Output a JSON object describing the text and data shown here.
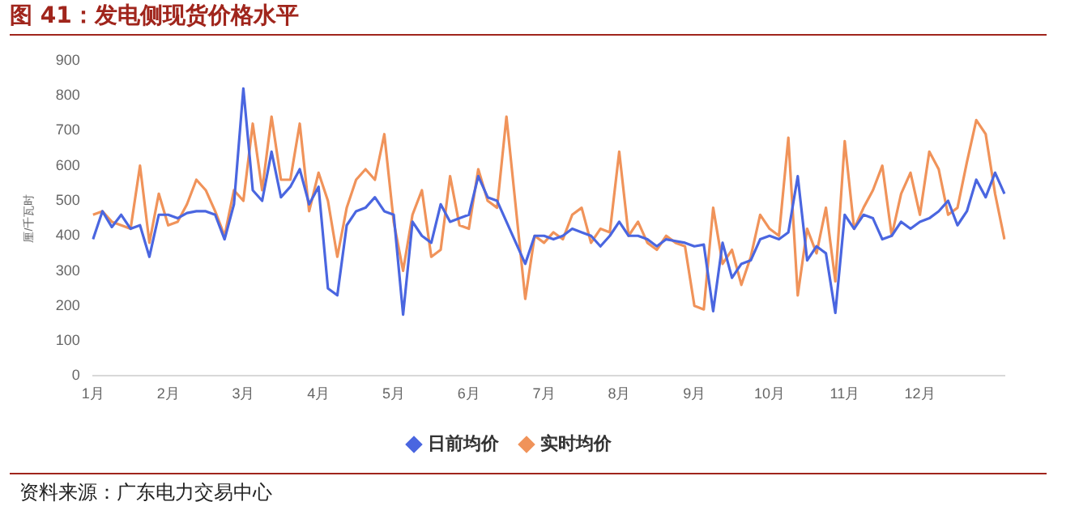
{
  "chart_data": {
    "type": "line",
    "title": "图 41：发电侧现货价格水平",
    "ylabel": "厘/千瓦时",
    "categories": [
      "1月",
      null,
      null,
      null,
      null,
      null,
      null,
      null,
      "2月",
      null,
      null,
      null,
      null,
      null,
      null,
      null,
      "3月",
      null,
      null,
      null,
      null,
      null,
      null,
      null,
      "4月",
      null,
      null,
      null,
      null,
      null,
      null,
      null,
      "5月",
      null,
      null,
      null,
      null,
      null,
      null,
      null,
      "6月",
      null,
      null,
      null,
      null,
      null,
      null,
      null,
      "7月",
      null,
      null,
      null,
      null,
      null,
      null,
      null,
      "8月",
      null,
      null,
      null,
      null,
      null,
      null,
      null,
      "9月",
      null,
      null,
      null,
      null,
      null,
      null,
      null,
      "10月",
      null,
      null,
      null,
      null,
      null,
      null,
      null,
      "11月",
      null,
      null,
      null,
      null,
      null,
      null,
      null,
      "12月",
      null,
      null,
      null,
      null,
      null,
      null,
      null,
      null,
      null
    ],
    "series": [
      {
        "name": "日前均价",
        "color": "#4a66e0",
        "values": [
          390,
          470,
          425,
          460,
          420,
          430,
          340,
          460,
          460,
          450,
          465,
          470,
          470,
          460,
          390,
          490,
          820,
          530,
          500,
          640,
          510,
          540,
          590,
          490,
          540,
          250,
          230,
          430,
          470,
          480,
          510,
          470,
          460,
          175,
          440,
          400,
          380,
          490,
          440,
          450,
          460,
          570,
          510,
          500,
          440,
          380,
          320,
          400,
          400,
          390,
          400,
          420,
          410,
          400,
          370,
          400,
          440,
          400,
          400,
          390,
          370,
          390,
          385,
          380,
          370,
          375,
          185,
          380,
          280,
          320,
          330,
          390,
          400,
          390,
          410,
          570,
          330,
          370,
          350,
          180,
          460,
          420,
          460,
          450,
          390,
          400,
          440,
          420,
          440,
          450,
          470,
          500,
          430,
          470,
          560,
          510,
          580,
          520
        ]
      },
      {
        "name": "实时均价",
        "color": "#f0935a",
        "values": [
          460,
          470,
          440,
          430,
          420,
          600,
          380,
          520,
          430,
          440,
          490,
          560,
          530,
          470,
          400,
          530,
          500,
          720,
          530,
          740,
          560,
          560,
          720,
          470,
          580,
          500,
          340,
          480,
          560,
          590,
          560,
          690,
          440,
          300,
          460,
          530,
          340,
          360,
          570,
          430,
          420,
          590,
          500,
          480,
          740,
          480,
          220,
          400,
          380,
          410,
          390,
          460,
          480,
          380,
          420,
          410,
          640,
          400,
          440,
          380,
          360,
          400,
          380,
          370,
          200,
          190,
          480,
          320,
          360,
          260,
          340,
          460,
          420,
          400,
          680,
          230,
          420,
          350,
          480,
          270,
          670,
          420,
          480,
          530,
          600,
          400,
          520,
          580,
          460,
          640,
          590,
          460,
          480,
          610,
          730,
          690,
          520,
          390
        ]
      }
    ],
    "ylim": [
      0,
      900
    ],
    "yticks": [
      0,
      100,
      200,
      300,
      400,
      500,
      600,
      700,
      800,
      900
    ],
    "grid": false,
    "legend": "bottom",
    "marker": "none",
    "annotations": [
      "资料来源：广东电力交易中心"
    ]
  }
}
